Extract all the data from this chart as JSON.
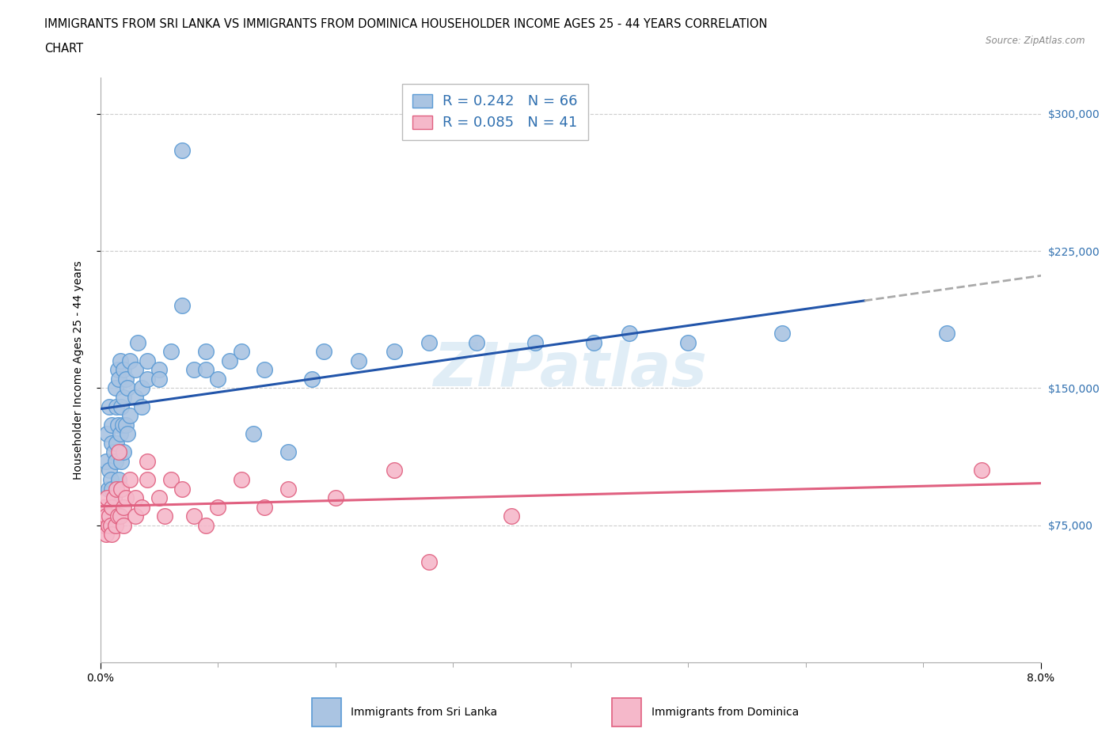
{
  "title_line1": "IMMIGRANTS FROM SRI LANKA VS IMMIGRANTS FROM DOMINICA HOUSEHOLDER INCOME AGES 25 - 44 YEARS CORRELATION",
  "title_line2": "CHART",
  "source_text": "Source: ZipAtlas.com",
  "ylabel": "Householder Income Ages 25 - 44 years",
  "x_min": 0.0,
  "x_max": 0.08,
  "y_min": 0,
  "y_max": 320000,
  "y_ticks": [
    75000,
    150000,
    225000,
    300000
  ],
  "y_tick_labels": [
    "$75,000",
    "$150,000",
    "$225,000",
    "$300,000"
  ],
  "x_ticks": [
    0.0,
    0.08
  ],
  "x_tick_labels": [
    "0.0%",
    "8.0%"
  ],
  "sri_lanka_color": "#aac4e2",
  "sri_lanka_edge": "#5b9bd5",
  "dominica_color": "#f5b8ca",
  "dominica_edge": "#e06080",
  "sri_lanka_line_color": "#2255aa",
  "dominica_line_color": "#e06080",
  "sri_lanka_R": 0.242,
  "sri_lanka_N": 66,
  "dominica_R": 0.085,
  "dominica_N": 41,
  "trend_extension_color": "#aaaaaa",
  "sri_lanka_x": [
    0.0005,
    0.0006,
    0.0007,
    0.0008,
    0.0008,
    0.0009,
    0.001,
    0.001,
    0.001,
    0.0012,
    0.0012,
    0.0013,
    0.0013,
    0.0014,
    0.0014,
    0.0015,
    0.0015,
    0.0016,
    0.0016,
    0.0017,
    0.0017,
    0.0018,
    0.0018,
    0.0019,
    0.002,
    0.002,
    0.002,
    0.0022,
    0.0022,
    0.0023,
    0.0023,
    0.0025,
    0.0025,
    0.003,
    0.003,
    0.0032,
    0.0035,
    0.0035,
    0.004,
    0.004,
    0.005,
    0.005,
    0.006,
    0.007,
    0.007,
    0.008,
    0.009,
    0.009,
    0.01,
    0.011,
    0.012,
    0.013,
    0.014,
    0.016,
    0.018,
    0.019,
    0.022,
    0.025,
    0.028,
    0.032,
    0.037,
    0.042,
    0.045,
    0.05,
    0.058,
    0.072
  ],
  "sri_lanka_y": [
    110000,
    125000,
    95000,
    140000,
    105000,
    100000,
    120000,
    95000,
    130000,
    115000,
    90000,
    150000,
    110000,
    140000,
    120000,
    160000,
    130000,
    155000,
    100000,
    165000,
    125000,
    140000,
    110000,
    130000,
    145000,
    160000,
    115000,
    155000,
    130000,
    150000,
    125000,
    165000,
    135000,
    160000,
    145000,
    175000,
    140000,
    150000,
    155000,
    165000,
    160000,
    155000,
    170000,
    280000,
    195000,
    160000,
    160000,
    170000,
    155000,
    165000,
    170000,
    125000,
    160000,
    115000,
    155000,
    170000,
    165000,
    170000,
    175000,
    175000,
    175000,
    175000,
    180000,
    175000,
    180000,
    180000
  ],
  "dominica_x": [
    0.0003,
    0.0004,
    0.0005,
    0.0005,
    0.0006,
    0.0007,
    0.0008,
    0.0009,
    0.001,
    0.001,
    0.0012,
    0.0013,
    0.0014,
    0.0015,
    0.0016,
    0.0017,
    0.0018,
    0.002,
    0.002,
    0.0022,
    0.0025,
    0.003,
    0.003,
    0.0035,
    0.004,
    0.004,
    0.005,
    0.0055,
    0.006,
    0.007,
    0.008,
    0.009,
    0.01,
    0.012,
    0.014,
    0.016,
    0.02,
    0.025,
    0.028,
    0.035,
    0.075
  ],
  "dominica_y": [
    85000,
    75000,
    80000,
    70000,
    90000,
    75000,
    80000,
    75000,
    85000,
    70000,
    90000,
    75000,
    95000,
    80000,
    115000,
    80000,
    95000,
    85000,
    75000,
    90000,
    100000,
    80000,
    90000,
    85000,
    100000,
    110000,
    90000,
    80000,
    100000,
    95000,
    80000,
    75000,
    85000,
    100000,
    85000,
    95000,
    90000,
    105000,
    55000,
    80000,
    105000
  ]
}
